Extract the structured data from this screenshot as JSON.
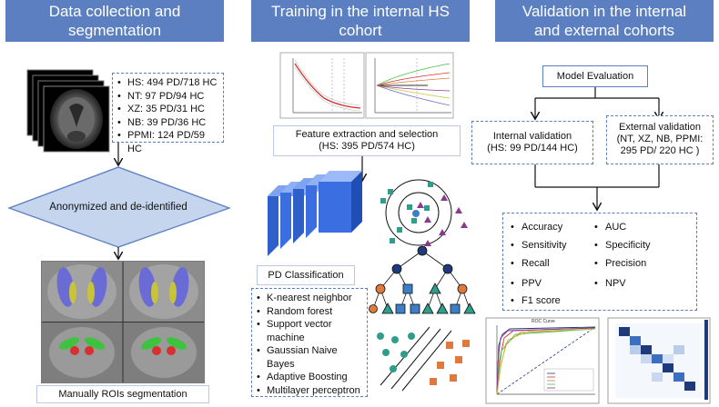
{
  "columns": {
    "col1_title": "Data collection and segmentation",
    "col2_title": "Training in the internal HS cohort",
    "col3_title": "Validation in the internal and external cohorts"
  },
  "cohorts": [
    "HS: 494 PD/718 HC",
    "NT: 97 PD/94 HC",
    "XZ: 35 PD/31 HC",
    "NB: 39 PD/36 HC",
    "PPMI: 124 PD/59 HC"
  ],
  "anonymize_label": "Anonymized and de-identified",
  "roi_label": "Manually ROIs segmentation",
  "feature_box": {
    "line1": "Feature extraction and selection",
    "line2": "(HS: 395 PD/574 HC)"
  },
  "pd_classification_label": "PD Classification",
  "classifiers": [
    "K-nearest neighbor",
    "Random forest",
    "Support vector machine",
    "Gaussian Naive Bayes",
    "Adaptive Boosting",
    "Multilayer perceptron"
  ],
  "model_evaluation_label": "Model Evaluation",
  "internal_validation": {
    "line1": "Internal validation",
    "line2": "(HS: 99 PD/144 HC)"
  },
  "external_validation": {
    "line1": "External validation",
    "line2": "(NT, XZ, NB, PPMI:",
    "line3": "295 PD/ 220 HC )"
  },
  "metrics_left": [
    "Accuracy",
    "Sensitivity",
    "Recall",
    "PPV",
    "F1 score"
  ],
  "metrics_right": [
    "AUC",
    "Specificity",
    "Precision",
    "NPV"
  ],
  "roc_title": "ROC Curve",
  "colors": {
    "header_bg": "#5b7fc1",
    "diamond_fill": "#c5d5ee",
    "knn_teal": "#2e9e8a",
    "triangle_purple": "#8b3a8b",
    "node_orange": "#e07a3c",
    "node_navy": "#1f3a7a",
    "putamen_blue": "#6b6bd6",
    "globus_yellow": "#c8c43a",
    "sn_red": "#d83030",
    "rn_green": "#3fc23f"
  }
}
